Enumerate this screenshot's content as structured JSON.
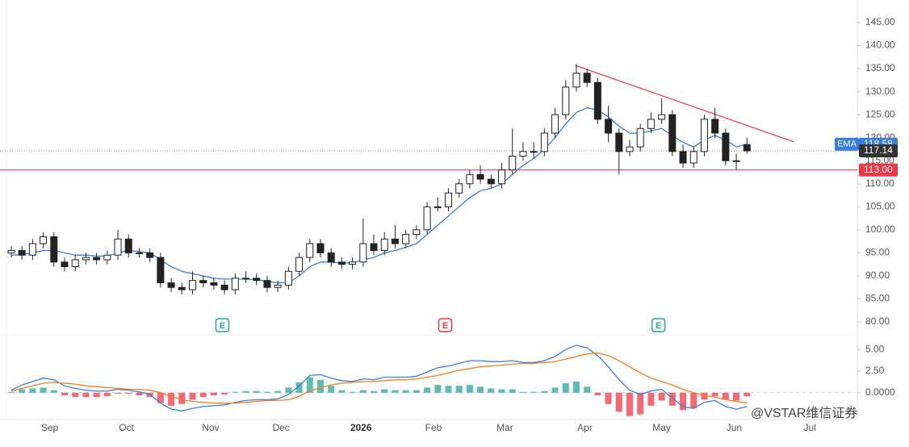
{
  "chart_data": [
    {
      "type": "candlestick",
      "xlim": [
        -0.3,
        79.2
      ],
      "xticks": [
        {
          "value": 3.6,
          "label": "Sep"
        },
        {
          "value": 10.8,
          "label": "Oct"
        },
        {
          "value": 18.7,
          "label": "Nov"
        },
        {
          "value": 25.3,
          "label": "Dec"
        },
        {
          "value": 32.8,
          "label": "2026"
        },
        {
          "value": 39.6,
          "label": "Feb"
        },
        {
          "value": 46.3,
          "label": "Mar"
        },
        {
          "value": 53.8,
          "label": "Apr"
        },
        {
          "value": 61,
          "label": "May"
        },
        {
          "value": 67.8,
          "label": "Jun"
        },
        {
          "value": 74.9,
          "label": "Jul"
        }
      ],
      "ylim": [
        77.2,
        149.9
      ],
      "yticks": [
        {
          "value": 80,
          "label": "80.00"
        },
        {
          "value": 85,
          "label": "85.00"
        },
        {
          "value": 90,
          "label": "90.00"
        },
        {
          "value": 95,
          "label": "95.00"
        },
        {
          "value": 100,
          "label": "100.00"
        },
        {
          "value": 105,
          "label": "105.00"
        },
        {
          "value": 110,
          "label": "110.00"
        },
        {
          "value": 115,
          "label": "115.00"
        },
        {
          "value": 120,
          "label": "120.00"
        },
        {
          "value": 125,
          "label": "125.00"
        },
        {
          "value": 130,
          "label": "130.00"
        },
        {
          "value": 135,
          "label": "135.00"
        },
        {
          "value": 140,
          "label": "140.00"
        },
        {
          "value": 145,
          "label": "145.00"
        }
      ],
      "open": [
        95,
        95.5,
        94.5,
        97,
        98.5,
        93,
        92,
        93.5,
        94,
        93.5,
        94.5,
        98,
        95,
        95,
        94,
        88.5,
        87.5,
        87,
        89,
        88.5,
        88,
        87,
        89.5,
        89.5,
        89,
        87.5,
        88,
        91,
        94,
        97,
        95,
        93,
        92.5,
        93,
        97,
        95.5,
        98,
        97,
        99,
        100,
        105,
        105,
        108,
        110,
        112,
        111,
        110,
        113,
        116,
        117,
        117,
        121,
        125,
        131,
        134,
        132,
        124,
        121,
        117,
        118,
        122,
        124,
        125,
        117,
        114.5,
        117,
        124,
        121,
        115,
        118.5
      ],
      "high": [
        96.5,
        96.5,
        98,
        99.5,
        99.5,
        94,
        94.5,
        95,
        95,
        95.5,
        100,
        99,
        96,
        96,
        95,
        89.5,
        88.5,
        91,
        90,
        89.5,
        89,
        90.5,
        91,
        90.5,
        90,
        89,
        92,
        95,
        98,
        98,
        96,
        94,
        94,
        102.5,
        99,
        99.5,
        101,
        100,
        101,
        106,
        107,
        109,
        111,
        113,
        114,
        112,
        114.5,
        122,
        119,
        119,
        122,
        126.5,
        132.5,
        136,
        135,
        133,
        127,
        122,
        119.5,
        123,
        125.5,
        128.5,
        126,
        118.5,
        118,
        125,
        126.5,
        122,
        116.5,
        120
      ],
      "low": [
        94,
        93.5,
        93.5,
        96,
        92,
        91,
        91,
        92.5,
        92.5,
        92.5,
        93.5,
        94,
        94,
        93,
        87.5,
        86.5,
        86,
        86,
        87.5,
        87,
        86,
        86,
        88.5,
        88,
        86.5,
        86.5,
        87,
        90,
        93,
        94,
        92,
        91.5,
        91.5,
        92,
        94.5,
        94.5,
        96,
        96,
        98,
        99,
        104,
        104,
        107,
        109,
        110,
        109,
        109,
        112,
        115,
        115.5,
        116,
        120,
        124,
        130,
        131,
        123,
        119,
        112,
        116,
        117,
        121,
        123,
        116,
        113.5,
        113.5,
        116,
        120,
        114,
        113,
        116.5
      ],
      "close": [
        95.5,
        94.5,
        97,
        98.5,
        93,
        92,
        93.5,
        94,
        93.5,
        94.5,
        98,
        95,
        95,
        94,
        88.5,
        87.5,
        87,
        89,
        88.5,
        88,
        87,
        89.5,
        89.5,
        89,
        87.5,
        88,
        91,
        94,
        97,
        95,
        93,
        92.5,
        93,
        97,
        95.5,
        98,
        97,
        99,
        100,
        105,
        105,
        108,
        110,
        112,
        111,
        110,
        113,
        116,
        117,
        117,
        121,
        125,
        131,
        134,
        132,
        124,
        121,
        117,
        118,
        122,
        124,
        125,
        117,
        114.5,
        117,
        124,
        121,
        115,
        115,
        117.14
      ],
      "series": [
        {
          "name": "EMA",
          "color": "#3b7ddd",
          "values": [
            94.5,
            94.6,
            95,
            95.5,
            95.5,
            95,
            94.5,
            94.5,
            94.3,
            94.3,
            95,
            95.5,
            95.3,
            95,
            93.5,
            92,
            91,
            90.5,
            90,
            89.5,
            89.3,
            89.3,
            89.3,
            89.2,
            88.8,
            88.5,
            88.5,
            90,
            92,
            93,
            93,
            92.8,
            92.8,
            93.5,
            94,
            95,
            95.5,
            96.2,
            97,
            99,
            101,
            103,
            105,
            107,
            108.5,
            109,
            110,
            112,
            114,
            115.5,
            117.5,
            120,
            123,
            125.5,
            126.5,
            126,
            124.5,
            122.5,
            121,
            121,
            121.5,
            122,
            120.5,
            119,
            118,
            119.5,
            120.5,
            119.5,
            118,
            118.58
          ]
        }
      ],
      "hlines": [
        {
          "value": 113,
          "label": "113.00",
          "color": "#f23645"
        }
      ],
      "trendlines": [
        {
          "x": [
            52.9,
            73.4
          ],
          "y": [
            135.7,
            119.1
          ],
          "color": "#f23645"
        }
      ],
      "events": [
        {
          "x": 19.8,
          "label": "E",
          "color": "#26a69a"
        },
        {
          "x": 40.7,
          "label": "E",
          "color": "#f23645"
        },
        {
          "x": 60.7,
          "label": "E",
          "color": "#26a69a"
        }
      ],
      "watermark": "@VSTAR维信证券"
    },
    {
      "type": "macd",
      "ylim": [
        -3.1,
        6.7
      ],
      "yticks": [
        {
          "value": 0,
          "label": "0.0000"
        },
        {
          "value": 2.5,
          "label": "2.50"
        },
        {
          "value": 5,
          "label": "5.00"
        }
      ],
      "series": [
        {
          "color": "#3b7ddd",
          "values": [
            0.3,
            0.9,
            1.3,
            1.7,
            1.5,
            0.8,
            0.5,
            0.3,
            0.2,
            0.2,
            0.4,
            0.3,
            0.1,
            -0.2,
            -1.2,
            -1.9,
            -2.1,
            -1.8,
            -1.6,
            -1.5,
            -1.4,
            -1.1,
            -0.9,
            -0.8,
            -0.8,
            -0.7,
            -0.2,
            0.8,
            2.0,
            2.1,
            1.7,
            1.4,
            1.3,
            1.6,
            1.5,
            1.8,
            1.8,
            1.8,
            1.9,
            2.4,
            2.9,
            3.1,
            3.4,
            3.7,
            3.7,
            3.6,
            3.6,
            3.7,
            3.5,
            3.5,
            3.7,
            4.2,
            5.0,
            5.5,
            5.2,
            4.3,
            3.0,
            1.5,
            0.3,
            -0.2,
            0.2,
            0.4,
            -0.6,
            -1.6,
            -1.8,
            -1.1,
            -0.9,
            -1.6,
            -1.9,
            -1.6
          ]
        },
        {
          "color": "#f57c1f",
          "values": [
            0.2,
            0.5,
            0.8,
            1.1,
            1.2,
            1.1,
            1.0,
            0.8,
            0.7,
            0.6,
            0.5,
            0.4,
            0.4,
            0.3,
            0.0,
            -0.4,
            -0.8,
            -1.0,
            -1.1,
            -1.2,
            -1.2,
            -1.2,
            -1.1,
            -1.0,
            -0.9,
            -0.9,
            -0.8,
            -0.4,
            0.2,
            0.6,
            0.9,
            1.1,
            1.2,
            1.3,
            1.3,
            1.4,
            1.5,
            1.5,
            1.6,
            1.8,
            2.0,
            2.3,
            2.6,
            2.8,
            3.0,
            3.1,
            3.2,
            3.3,
            3.4,
            3.4,
            3.5,
            3.6,
            3.9,
            4.2,
            4.5,
            4.6,
            4.3,
            3.7,
            3.0,
            2.3,
            1.7,
            1.3,
            0.9,
            0.4,
            0.0,
            -0.3,
            -0.5,
            -0.8,
            -1.0,
            -1.2
          ]
        }
      ],
      "histogram": {
        "up_color": "#26a69a",
        "down_color": "#f23645",
        "values": [
          0.1,
          0.4,
          0.5,
          0.6,
          0.3,
          -0.3,
          -0.5,
          -0.5,
          -0.5,
          -0.4,
          -0.1,
          -0.1,
          -0.3,
          -0.5,
          -1.2,
          -1.5,
          -1.3,
          -0.8,
          -0.5,
          -0.3,
          -0.2,
          0.1,
          0.2,
          0.2,
          0.1,
          0.2,
          0.6,
          1.2,
          1.8,
          1.5,
          0.8,
          0.3,
          0.1,
          0.3,
          0.2,
          0.4,
          0.3,
          0.3,
          0.3,
          0.6,
          0.9,
          0.8,
          0.8,
          0.9,
          0.7,
          0.5,
          0.4,
          0.4,
          0.1,
          0.1,
          0.2,
          0.6,
          1.1,
          1.3,
          0.7,
          -0.3,
          -1.3,
          -2.2,
          -2.7,
          -2.5,
          -1.5,
          -0.9,
          -1.5,
          -2.0,
          -1.8,
          -0.8,
          -0.4,
          -0.8,
          -0.9,
          -0.4
        ]
      }
    }
  ]
}
